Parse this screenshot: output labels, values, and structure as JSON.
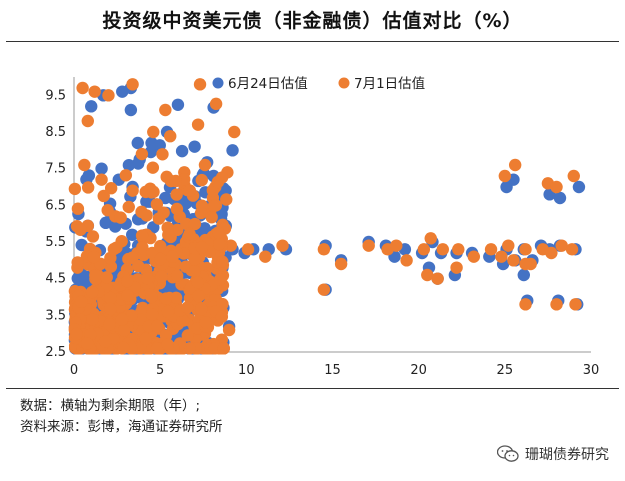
{
  "chart_data": {
    "type": "scatter",
    "title": "投资级中资美元债（非金融债）估值对比（%）",
    "xlabel": "",
    "ylabel": "",
    "xlim": [
      0,
      30
    ],
    "ylim": [
      2.5,
      10.0
    ],
    "xticks": [
      "0",
      "5",
      "10",
      "15",
      "20",
      "25",
      "30"
    ],
    "yticks": [
      "2.5",
      "3.5",
      "4.5",
      "5.5",
      "6.5",
      "7.5",
      "8.5",
      "9.5"
    ],
    "legend_position": "top-right",
    "series": [
      {
        "name": "6月24日估值",
        "color": "#4472c4",
        "points": [
          [
            3.3,
            9.1
          ],
          [
            3.3,
            9.7
          ],
          [
            1.0,
            9.2
          ],
          [
            1.7,
            9.5
          ],
          [
            2.8,
            9.6
          ],
          [
            3.7,
            8.2
          ],
          [
            5.4,
            8.5
          ],
          [
            4.5,
            8.2
          ],
          [
            9.2,
            8.0
          ],
          [
            7.0,
            8.1
          ],
          [
            8.8,
            6.9
          ],
          [
            8.1,
            7.3
          ],
          [
            6.4,
            6.6
          ],
          [
            1.6,
            7.5
          ],
          [
            2.6,
            7.2
          ],
          [
            3.4,
            7.0
          ],
          [
            4.2,
            6.6
          ],
          [
            5.3,
            6.7
          ],
          [
            9.2,
            5.3
          ],
          [
            8.2,
            5.8
          ],
          [
            6.1,
            5.6
          ],
          [
            7.1,
            5.7
          ],
          [
            4.6,
            5.9
          ],
          [
            2.1,
            6.3
          ],
          [
            3.0,
            6.0
          ],
          [
            9.9,
            5.2
          ],
          [
            10.4,
            5.3
          ],
          [
            11.3,
            5.3
          ],
          [
            12.3,
            5.3
          ],
          [
            14.6,
            5.4
          ],
          [
            15.5,
            5.0
          ],
          [
            17.1,
            5.5
          ],
          [
            18.1,
            5.4
          ],
          [
            18.6,
            5.1
          ],
          [
            19.2,
            5.3
          ],
          [
            20.2,
            5.2
          ],
          [
            20.8,
            5.5
          ],
          [
            21.3,
            5.2
          ],
          [
            22.2,
            5.2
          ],
          [
            23.1,
            5.2
          ],
          [
            24.1,
            5.1
          ],
          [
            25.1,
            5.3
          ],
          [
            25.6,
            5.0
          ],
          [
            26.1,
            5.3
          ],
          [
            26.6,
            5.0
          ],
          [
            27.1,
            5.4
          ],
          [
            27.6,
            5.3
          ],
          [
            28.2,
            5.4
          ],
          [
            29.1,
            5.3
          ],
          [
            22.1,
            4.6
          ],
          [
            24.9,
            4.9
          ],
          [
            26.1,
            4.6
          ],
          [
            21.1,
            4.5
          ],
          [
            20.6,
            4.8
          ],
          [
            25.1,
            7.0
          ],
          [
            25.5,
            7.2
          ],
          [
            27.6,
            6.8
          ],
          [
            28.2,
            6.7
          ],
          [
            29.3,
            7.0
          ],
          [
            14.6,
            4.2
          ],
          [
            26.3,
            3.9
          ],
          [
            28.1,
            3.9
          ],
          [
            29.2,
            3.8
          ],
          [
            9.0,
            3.2
          ],
          [
            7.6,
            3.2
          ],
          [
            6.3,
            3.3
          ],
          [
            5.1,
            3.0
          ],
          [
            0.4,
            2.7
          ],
          [
            0.2,
            3.5
          ],
          [
            0.1,
            4.2
          ]
        ]
      },
      {
        "name": "7月1日估值",
        "color": "#ed7d31",
        "points": [
          [
            0.5,
            9.7
          ],
          [
            1.2,
            9.6
          ],
          [
            3.4,
            9.8
          ],
          [
            2.0,
            9.5
          ],
          [
            0.8,
            8.8
          ],
          [
            5.3,
            9.1
          ],
          [
            4.6,
            8.5
          ],
          [
            7.2,
            8.7
          ],
          [
            9.3,
            8.5
          ],
          [
            7.6,
            7.6
          ],
          [
            8.9,
            7.4
          ],
          [
            6.4,
            7.4
          ],
          [
            0.6,
            7.6
          ],
          [
            1.6,
            7.2
          ],
          [
            3.4,
            6.9
          ],
          [
            6.7,
            6.9
          ],
          [
            8.2,
            7.0
          ],
          [
            5.2,
            6.3
          ],
          [
            9.1,
            5.4
          ],
          [
            8.0,
            5.3
          ],
          [
            6.2,
            5.3
          ],
          [
            7.0,
            5.0
          ],
          [
            4.2,
            5.7
          ],
          [
            2.4,
            6.2
          ],
          [
            10.1,
            5.3
          ],
          [
            11.1,
            5.1
          ],
          [
            12.1,
            5.4
          ],
          [
            14.5,
            5.3
          ],
          [
            15.5,
            4.9
          ],
          [
            17.1,
            5.4
          ],
          [
            18.2,
            5.3
          ],
          [
            18.7,
            5.4
          ],
          [
            19.3,
            5.0
          ],
          [
            20.3,
            5.3
          ],
          [
            20.7,
            5.6
          ],
          [
            21.4,
            5.3
          ],
          [
            22.3,
            5.3
          ],
          [
            23.2,
            5.1
          ],
          [
            24.2,
            5.3
          ],
          [
            25.2,
            5.4
          ],
          [
            25.5,
            5.0
          ],
          [
            26.2,
            5.3
          ],
          [
            26.5,
            4.9
          ],
          [
            27.2,
            5.3
          ],
          [
            27.7,
            5.2
          ],
          [
            28.3,
            5.4
          ],
          [
            28.9,
            5.3
          ],
          [
            22.2,
            4.8
          ],
          [
            24.8,
            5.1
          ],
          [
            26.2,
            4.9
          ],
          [
            21.1,
            4.5
          ],
          [
            20.5,
            4.6
          ],
          [
            25.0,
            7.3
          ],
          [
            25.6,
            7.6
          ],
          [
            27.5,
            7.1
          ],
          [
            28.0,
            7.0
          ],
          [
            29.0,
            7.3
          ],
          [
            14.5,
            4.2
          ],
          [
            26.2,
            3.8
          ],
          [
            28.0,
            3.8
          ],
          [
            29.1,
            3.8
          ],
          [
            9.0,
            3.1
          ],
          [
            7.6,
            3.0
          ],
          [
            6.4,
            3.4
          ],
          [
            4.8,
            2.7
          ],
          [
            0.3,
            3.5
          ],
          [
            0.3,
            4.0
          ],
          [
            0.2,
            4.8
          ]
        ]
      }
    ]
  },
  "notes": {
    "line1": "数据：横轴为剩余期限（年）;",
    "line2": "资料来源：彭博，海通证券研究所"
  },
  "watermark": "珊瑚债券研究"
}
